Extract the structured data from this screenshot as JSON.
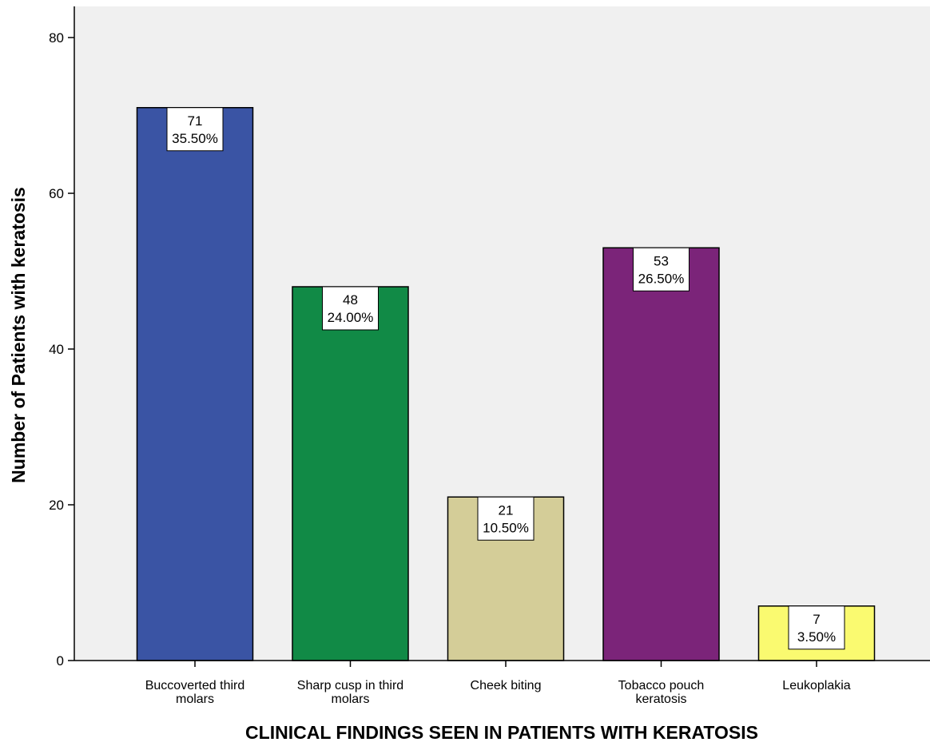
{
  "chart_data": {
    "type": "bar",
    "title": "",
    "xlabel": "CLINICAL FINDINGS SEEN IN PATIENTS WITH KERATOSIS",
    "ylabel": "Number of Patients with keratosis",
    "categories": [
      [
        "Buccoverted third",
        "molars"
      ],
      [
        "Sharp cusp in third",
        "molars"
      ],
      [
        "Cheek biting"
      ],
      [
        "Tobacco pouch",
        "keratosis"
      ],
      [
        "Leukoplakia"
      ]
    ],
    "values": [
      71,
      48,
      21,
      53,
      7
    ],
    "percent_labels": [
      "35.50%",
      "24.00%",
      "10.50%",
      "26.50%",
      "3.50%"
    ],
    "bar_colors": [
      "#3a54a4",
      "#118a46",
      "#d4cd98",
      "#7b2479",
      "#fafa70"
    ],
    "ylim": [
      0,
      84
    ],
    "yticks": [
      0,
      20,
      40,
      60,
      80
    ],
    "grid": false,
    "plot_background": "#f0f0f0"
  }
}
